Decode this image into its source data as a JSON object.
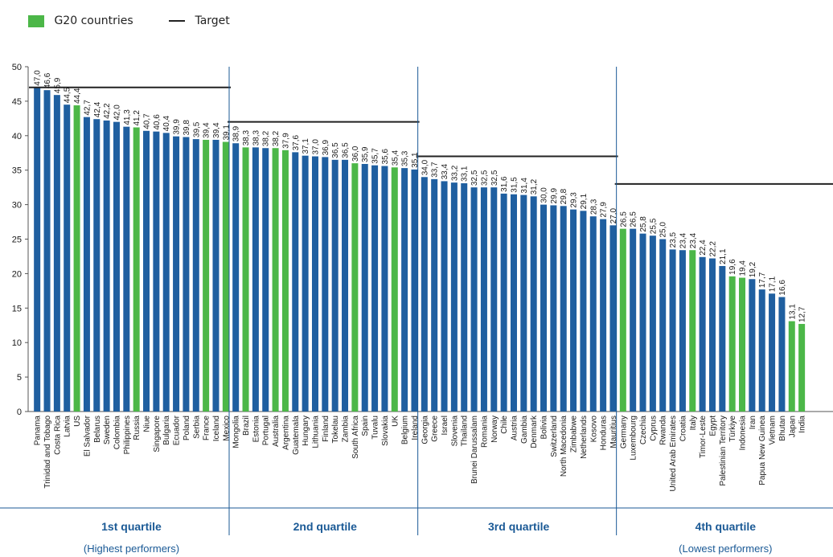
{
  "legend": {
    "g20_label": "G20 countries",
    "target_label": "Target"
  },
  "colors": {
    "blue": "#1f5fa0",
    "green": "#4cb748",
    "target": "#222222",
    "axis": "#1b5a96",
    "text": "#1a1a1a"
  },
  "chart_data": {
    "type": "bar",
    "ylim": [
      0,
      50
    ],
    "yticks": [
      0,
      5,
      10,
      15,
      20,
      25,
      30,
      35,
      40,
      45,
      50
    ],
    "grid": false,
    "legend_position": "top-left",
    "categories": [
      "Panama",
      "Trinidad and Tobago",
      "Costa Rica",
      "Latvia",
      "US",
      "El Salvador",
      "Belarus",
      "Sweden",
      "Colombia",
      "Philippines",
      "Russia",
      "Niue",
      "Singapore",
      "Bulgaria",
      "Ecuador",
      "Poland",
      "Serbia",
      "France",
      "Iceland",
      "Mexico",
      "Mongolia",
      "Brazil",
      "Estonia",
      "Portugal",
      "Australia",
      "Argentina",
      "Guatemala",
      "Hungary",
      "Lithuania",
      "Finland",
      "Tokelau",
      "Zambia",
      "South Africa",
      "Spain",
      "Tuvalu",
      "Slovakia",
      "UK",
      "Belgium",
      "Ireland",
      "Georgia",
      "Greece",
      "Israel",
      "Slovenia",
      "Thailand",
      "Brunei Darussalam",
      "Romania",
      "Norway",
      "Chile",
      "Austria",
      "Gambia",
      "Denmark",
      "Bolivia",
      "Switzerland",
      "North Macedonia",
      "Zimbabwe",
      "Netherlands",
      "Kosovo",
      "Honduras",
      "Mauritius",
      "Germany",
      "Luxembourg",
      "Czechia",
      "Cyprus",
      "Rwanda",
      "United Arab Emirates",
      "Croatia",
      "Italy",
      "Timor-Leste",
      "Egypt",
      "Palestinian Territory",
      "Türkiye",
      "Indonesia",
      "Iran",
      "Papua New Guinea",
      "Vietnam",
      "Bhutan",
      "Japan",
      "India"
    ],
    "values": [
      47.0,
      46.6,
      45.9,
      44.5,
      44.4,
      42.7,
      42.4,
      42.2,
      42.0,
      41.3,
      41.2,
      40.7,
      40.6,
      40.4,
      39.9,
      39.8,
      39.5,
      39.4,
      39.4,
      39.1,
      38.9,
      38.3,
      38.3,
      38.2,
      38.2,
      37.9,
      37.6,
      37.1,
      37.0,
      36.9,
      36.5,
      36.5,
      36.0,
      35.9,
      35.7,
      35.6,
      35.4,
      35.3,
      35.1,
      34.0,
      33.7,
      33.4,
      33.2,
      33.1,
      32.5,
      32.5,
      32.5,
      31.6,
      31.5,
      31.4,
      31.2,
      30.0,
      29.9,
      29.8,
      29.3,
      29.1,
      28.3,
      27.9,
      27.0,
      26.5,
      26.5,
      25.8,
      25.5,
      25.0,
      23.5,
      23.4,
      23.4,
      22.4,
      22.2,
      21.1,
      19.6,
      19.4,
      19.2,
      17.7,
      17.1,
      16.6,
      13.1,
      12.7
    ],
    "value_labels": [
      "47,0",
      "46,6",
      "45,9",
      "44,5",
      "44,4",
      "42,7",
      "42,4",
      "42,2",
      "42,0",
      "41,3",
      "41,2",
      "40,7",
      "40,6",
      "40,4",
      "39,9",
      "39,8",
      "39,5",
      "39,4",
      "39,4",
      "39,1",
      "38,9",
      "38,3",
      "38,3",
      "38,2",
      "38,2",
      "37,9",
      "37,6",
      "37,1",
      "37,0",
      "36,9",
      "36,5",
      "36,5",
      "36,0",
      "35,9",
      "35,7",
      "35,6",
      "35,4",
      "35,3",
      "35,1",
      "34,0",
      "33,7",
      "33,4",
      "33,2",
      "33,1",
      "32,5",
      "32,5",
      "32,5",
      "31,6",
      "31,5",
      "31,4",
      "31,2",
      "30,0",
      "29,9",
      "29,8",
      "29,3",
      "29,1",
      "28,3",
      "27,9",
      "27,0",
      "26,5",
      "26,5",
      "25,8",
      "25,5",
      "25,0",
      "23,5",
      "23,4",
      "23,4",
      "22,4",
      "22,2",
      "21,1",
      "19,6",
      "19,4",
      "19,2",
      "17,7",
      "17,1",
      "16,6",
      "13,1",
      "12,7"
    ],
    "g20": [
      false,
      false,
      false,
      false,
      true,
      false,
      false,
      false,
      false,
      false,
      true,
      false,
      false,
      false,
      false,
      false,
      false,
      true,
      false,
      true,
      false,
      true,
      false,
      false,
      true,
      true,
      false,
      false,
      false,
      false,
      false,
      false,
      true,
      false,
      false,
      false,
      true,
      false,
      false,
      false,
      false,
      false,
      false,
      false,
      false,
      false,
      false,
      false,
      false,
      false,
      false,
      false,
      false,
      false,
      false,
      false,
      false,
      false,
      false,
      true,
      false,
      false,
      false,
      false,
      false,
      false,
      true,
      false,
      false,
      false,
      true,
      true,
      false,
      false,
      false,
      false,
      true,
      true
    ],
    "quartiles": [
      {
        "label": "1st quartile",
        "sublabel": "(Highest performers)",
        "start": 0,
        "end": 19,
        "target": 47.0
      },
      {
        "label": "2nd quartile",
        "sublabel": "",
        "start": 20,
        "end": 38,
        "target": 42.0
      },
      {
        "label": "3rd quartile",
        "sublabel": "",
        "start": 39,
        "end": 58,
        "target": 37.0
      },
      {
        "label": "4th quartile",
        "sublabel": "(Lowest performers)",
        "start": 59,
        "end": 77,
        "target": 33.0
      }
    ]
  }
}
